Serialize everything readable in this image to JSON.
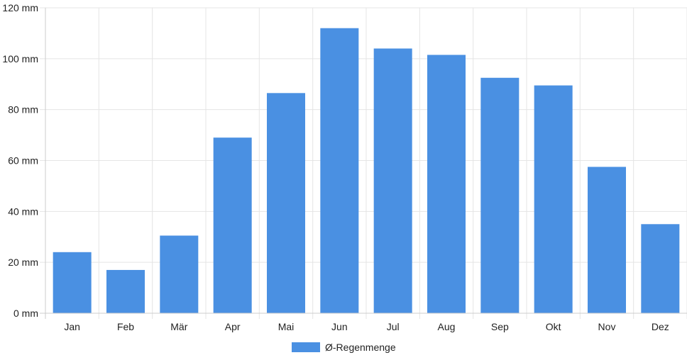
{
  "chart_data": {
    "type": "bar",
    "categories": [
      "Jan",
      "Feb",
      "Mär",
      "Apr",
      "Mai",
      "Jun",
      "Jul",
      "Aug",
      "Sep",
      "Okt",
      "Nov",
      "Dez"
    ],
    "series": [
      {
        "name": "Ø-Regenmenge",
        "values": [
          24,
          17,
          30.5,
          69,
          86.5,
          112,
          104,
          101.5,
          92.5,
          89.5,
          57.5,
          35
        ],
        "color": "#4a90e2"
      }
    ],
    "y_ticks": [
      "0 mm",
      "20 mm",
      "40 mm",
      "60 mm",
      "80 mm",
      "100 mm",
      "120 mm"
    ],
    "ylim": [
      0,
      120
    ],
    "y_unit": "mm",
    "grid": true,
    "legend_position": "bottom"
  },
  "colors": {
    "bar": "#4a90e2",
    "grid": "#e5e5e5",
    "axis": "#cccccc",
    "text": "#222222"
  }
}
